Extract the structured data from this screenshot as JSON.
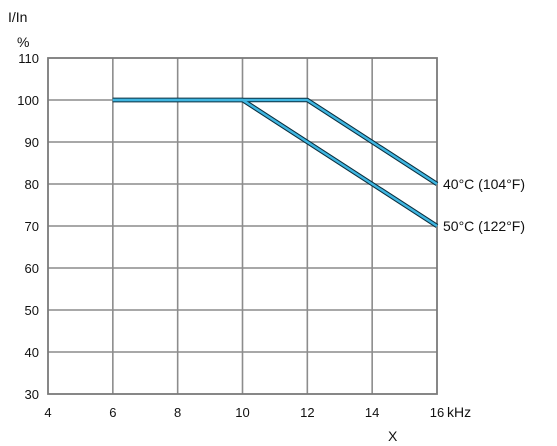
{
  "chart_data": {
    "type": "line",
    "ylabel": "I/In",
    "yunit": "%",
    "xlabel": "X",
    "xunit": "kHz",
    "xlim": [
      4,
      16
    ],
    "ylim": [
      30,
      110
    ],
    "xticks": [
      4,
      6,
      8,
      10,
      12,
      14,
      16
    ],
    "yticks": [
      30,
      40,
      50,
      60,
      70,
      80,
      90,
      100,
      110
    ],
    "grid": true,
    "series": [
      {
        "name": "40°C (104°F)",
        "color": "#3fb6e1",
        "points": [
          [
            6,
            100
          ],
          [
            12,
            100
          ],
          [
            16,
            80
          ]
        ]
      },
      {
        "name": "50°C (122°F)",
        "color": "#3fb6e1",
        "points": [
          [
            6,
            100
          ],
          [
            10,
            100
          ],
          [
            16,
            70
          ]
        ]
      }
    ]
  }
}
